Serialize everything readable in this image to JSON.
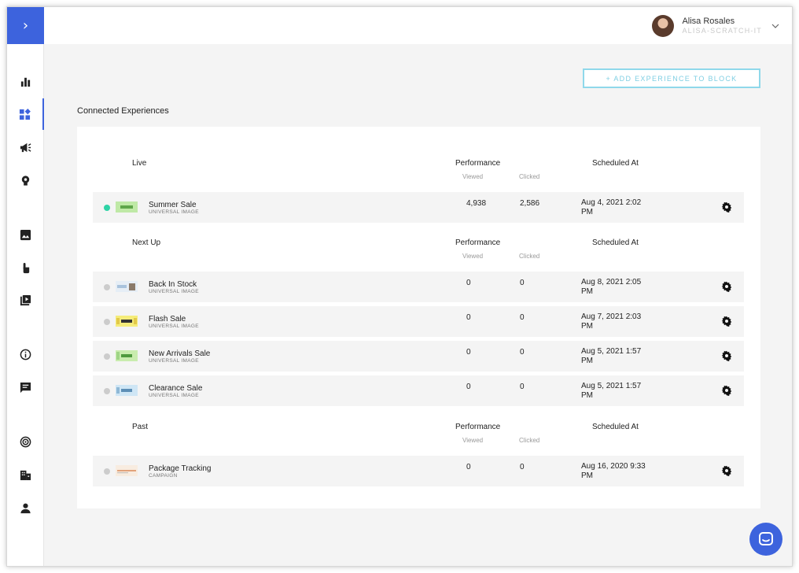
{
  "sidebar": {
    "toggle_glyph": "›",
    "items": [
      {
        "icon": "bar-chart-icon",
        "active": false
      },
      {
        "icon": "widgets-icon",
        "active": true
      },
      {
        "icon": "megaphone-icon",
        "active": false
      },
      {
        "icon": "lightbulb-icon",
        "active": false
      },
      {
        "icon": "image-icon",
        "active": false
      },
      {
        "icon": "touch-icon",
        "active": false
      },
      {
        "icon": "video-library-icon",
        "active": false
      },
      {
        "icon": "info-icon",
        "active": false
      },
      {
        "icon": "message-icon",
        "active": false
      },
      {
        "icon": "target-icon",
        "active": false
      },
      {
        "icon": "building-icon",
        "active": false
      },
      {
        "icon": "person-icon",
        "active": false
      }
    ]
  },
  "user": {
    "name": "Alisa Rosales",
    "org": "ALISA-SCRATCH-IT"
  },
  "add_button_label": "+ ADD EXPERIENCE TO BLOCK",
  "section_title": "Connected Experiences",
  "columns": {
    "performance": "Performance",
    "viewed": "Viewed",
    "clicked": "Clicked",
    "scheduled": "Scheduled At"
  },
  "groups": [
    {
      "label": "Live",
      "rows": [
        {
          "name": "Summer Sale",
          "type": "UNIVERSAL IMAGE",
          "viewed": "4,938",
          "clicked": "2,586",
          "scheduled": "Aug 4, 2021 2:02 PM",
          "live": true
        }
      ]
    },
    {
      "label": "Next Up",
      "rows": [
        {
          "name": "Back In Stock",
          "type": "UNIVERSAL IMAGE",
          "viewed": "0",
          "clicked": "0",
          "scheduled": "Aug 8, 2021 2:05 PM",
          "live": false
        },
        {
          "name": "Flash Sale",
          "type": "UNIVERSAL IMAGE",
          "viewed": "0",
          "clicked": "0",
          "scheduled": "Aug 7, 2021 2:03 PM",
          "live": false
        },
        {
          "name": "New Arrivals Sale",
          "type": "UNIVERSAL IMAGE",
          "viewed": "0",
          "clicked": "0",
          "scheduled": "Aug 5, 2021 1:57 PM",
          "live": false
        },
        {
          "name": "Clearance Sale",
          "type": "UNIVERSAL IMAGE",
          "viewed": "0",
          "clicked": "0",
          "scheduled": "Aug 5, 2021 1:57 PM",
          "live": false
        }
      ]
    },
    {
      "label": "Past",
      "rows": [
        {
          "name": "Package Tracking",
          "type": "CAMPAIGN",
          "viewed": "0",
          "clicked": "0",
          "scheduled": "Aug 16, 2020 9:33 PM",
          "live": false
        }
      ]
    }
  ],
  "colors": {
    "accent": "#3d63dd",
    "live_dot": "#2ed3a6",
    "button_border": "#8fd8ea"
  }
}
